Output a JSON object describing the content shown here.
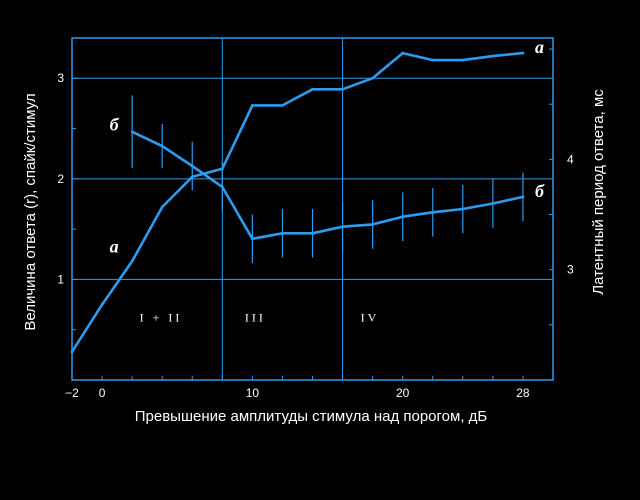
{
  "colors": {
    "background": "#000000",
    "plot": "#2b9cf0",
    "text": "#ffffff"
  },
  "chart_data": {
    "type": "line",
    "xlabel": "Превышение амплитуды стимула над порогом,  дБ",
    "ylabel": "Величина ответа  (r),  спайк/стимул",
    "y2label": "Латентный период ответа,  мс",
    "xlim": [
      -2,
      30
    ],
    "ylim": [
      0,
      3.4
    ],
    "y2lim": [
      2,
      5.1
    ],
    "x_ticks": [
      -2,
      0,
      10,
      20,
      28
    ],
    "x_tick_labels": [
      "−2",
      "0",
      "10",
      "20",
      "28"
    ],
    "y_ticks": [
      1,
      2,
      3
    ],
    "y_tick_labels": [
      "1",
      "2",
      "3"
    ],
    "y2_ticks": [
      3,
      4
    ],
    "y2_tick_labels": [
      "3",
      "4"
    ],
    "grid_x": [
      8,
      16
    ],
    "grid_y": [
      1,
      2,
      3
    ],
    "zones": [
      {
        "label": "I + II",
        "x": 2.5
      },
      {
        "label": "III",
        "x": 9.5
      },
      {
        "label": "IV",
        "x": 17.2
      }
    ],
    "series": [
      {
        "name": "а",
        "axis": "left",
        "label_positions": [
          {
            "x": 0.8,
            "y": 1.27
          },
          {
            "x": 29.1,
            "y": 3.25
          }
        ],
        "x": [
          -2,
          0,
          2,
          4,
          6,
          8,
          10,
          12,
          14,
          16,
          18,
          20,
          22,
          24,
          26,
          28
        ],
        "y": [
          0.28,
          0.75,
          1.18,
          1.72,
          2.02,
          2.1,
          2.73,
          2.73,
          2.89,
          2.89,
          3.0,
          3.25,
          3.18,
          3.18,
          3.22,
          3.25
        ],
        "error": []
      },
      {
        "name": "б",
        "axis": "right",
        "label_positions": [
          {
            "x": 0.8,
            "y": 4.26
          },
          {
            "x": 29.1,
            "y": 3.66
          }
        ],
        "x": [
          2,
          4,
          6,
          8,
          10,
          12,
          14,
          16,
          18,
          20,
          22,
          24,
          26,
          28
        ],
        "y": [
          4.25,
          4.12,
          3.94,
          3.75,
          3.28,
          3.33,
          3.33,
          3.39,
          3.41,
          3.48,
          3.52,
          3.55,
          3.6,
          3.66
        ],
        "error": [
          0.33,
          0.2,
          0.22,
          0.22,
          0.22,
          0.22,
          0.22,
          0.22,
          0.22,
          0.22,
          0.22,
          0.22,
          0.22,
          0.22
        ]
      }
    ]
  }
}
